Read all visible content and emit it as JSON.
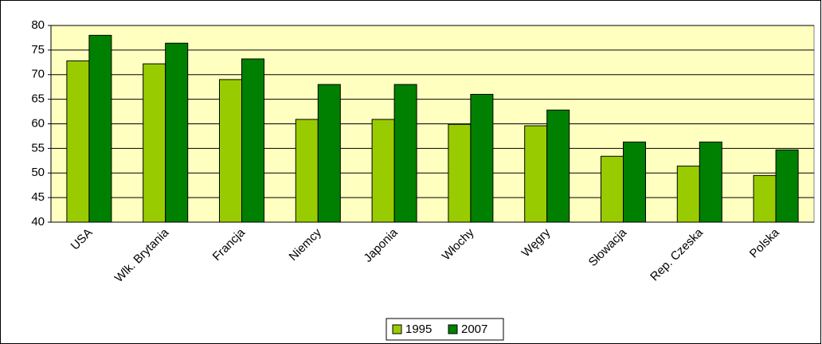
{
  "chart_data": {
    "type": "bar",
    "categories": [
      "USA",
      "Wlk. Brytania",
      "Francja",
      "Niemcy",
      "Japonia",
      "Włochy",
      "Węgry",
      "Słowacja",
      "Rep. Czeska",
      "Polska"
    ],
    "series": [
      {
        "name": "1995",
        "color": "#99cc00",
        "values": [
          72.8,
          72.2,
          69.0,
          60.9,
          60.9,
          59.9,
          59.6,
          53.4,
          51.4,
          49.5
        ]
      },
      {
        "name": "2007",
        "color": "#008000",
        "values": [
          78.0,
          76.4,
          73.2,
          68.0,
          68.0,
          66.0,
          62.8,
          56.3,
          56.3,
          54.7
        ]
      }
    ],
    "ylim": [
      40,
      80
    ],
    "yticks": [
      40,
      45,
      50,
      55,
      60,
      65,
      70,
      75,
      80
    ],
    "grid": true,
    "legend": "bottom"
  }
}
